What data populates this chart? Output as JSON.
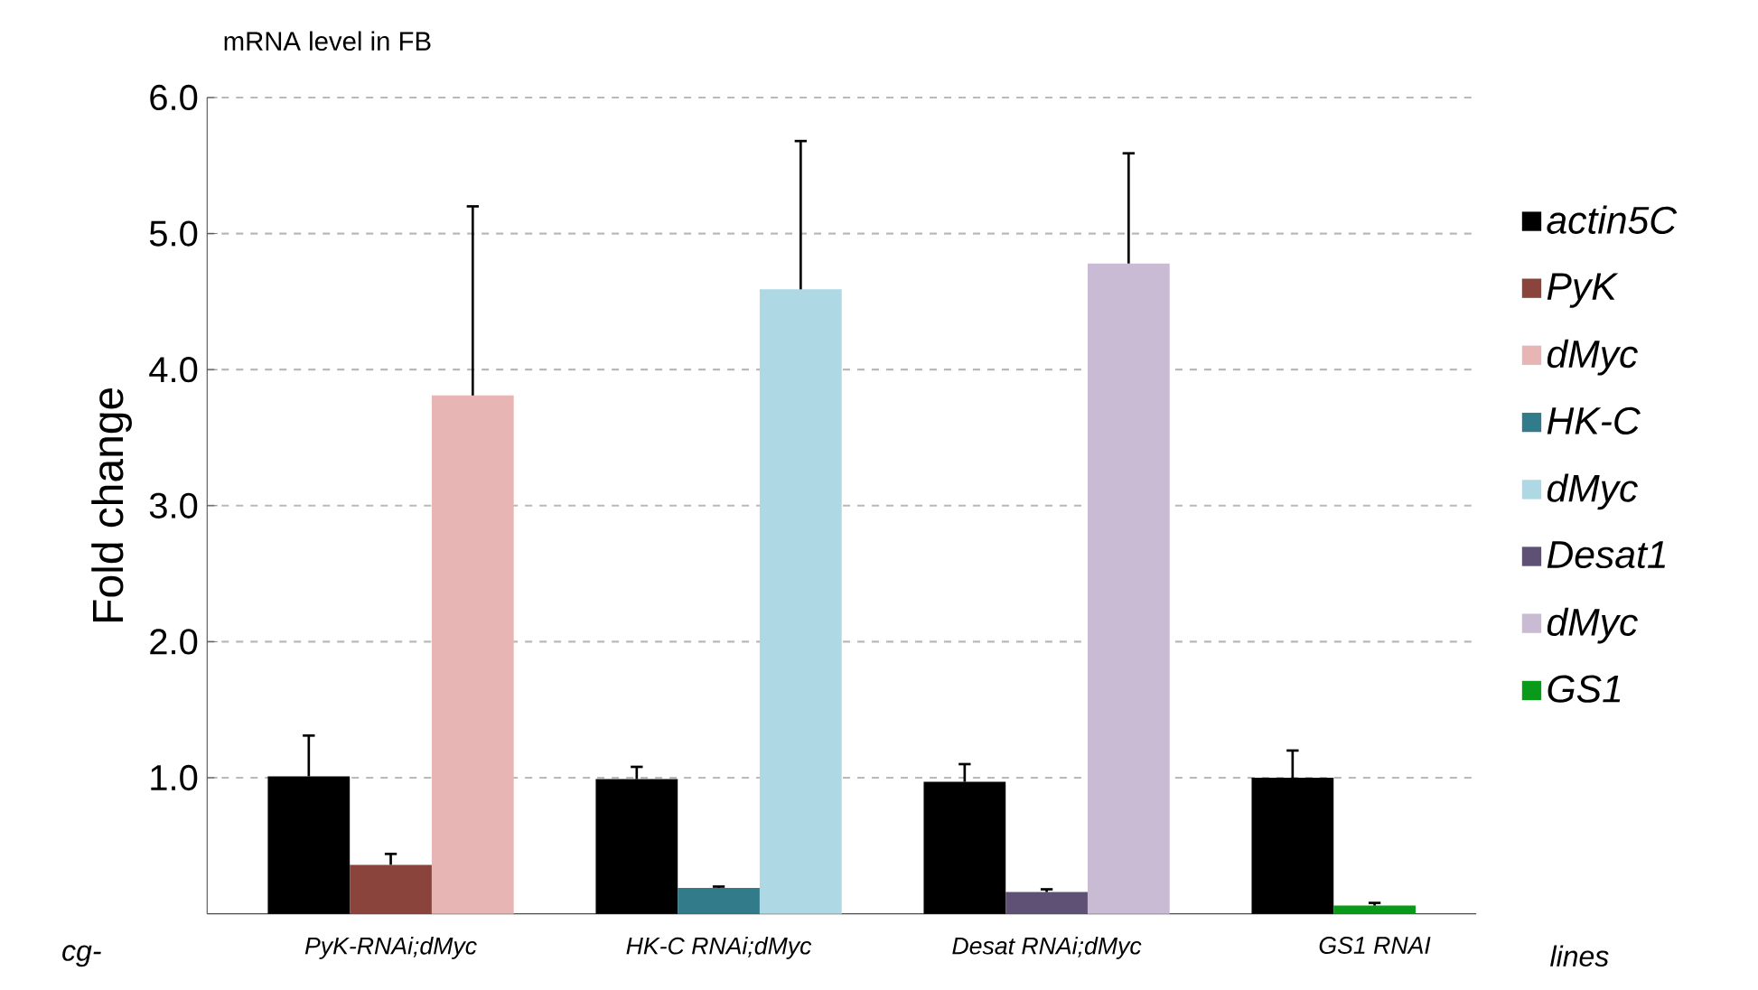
{
  "chart_data": {
    "type": "bar",
    "title": "mRNA level in FB",
    "ylabel": "Fold change",
    "categories": [
      "PyK-RNAi;dMyc",
      "HK-C RNAi;dMyc",
      "Desat RNAi;dMyc",
      "GS1 RNAI"
    ],
    "series": [
      {
        "name": "actin5C",
        "color": "#000000",
        "values": [
          1.01,
          0.99,
          0.97,
          1.0
        ],
        "errors": [
          [
            1.01,
            1.31
          ],
          [
            0.99,
            1.08
          ],
          [
            0.97,
            1.1
          ],
          [
            1.0,
            1.2
          ]
        ]
      },
      {
        "name": "PyK",
        "color": "#8b443c",
        "values": [
          0.36,
          null,
          null,
          null
        ],
        "errors": [
          [
            0.36,
            0.44
          ],
          null,
          null,
          null
        ]
      },
      {
        "name": "dMyc",
        "color": "#e6b5b4",
        "values": [
          3.81,
          null,
          null,
          null
        ],
        "errors": [
          [
            3.81,
            5.2
          ],
          null,
          null,
          null
        ]
      },
      {
        "name": "HK-C",
        "color": "#317b8a",
        "values": [
          null,
          0.19,
          null,
          null
        ],
        "errors": [
          null,
          [
            0.19,
            0.2
          ],
          null,
          null
        ]
      },
      {
        "name": "dMyc",
        "color": "#aed8e4",
        "values": [
          null,
          4.59,
          null,
          null
        ],
        "errors": [
          null,
          [
            4.59,
            5.68
          ],
          null,
          null
        ]
      },
      {
        "name": "Desat1",
        "color": "#5f5175",
        "values": [
          null,
          null,
          0.16,
          null
        ],
        "errors": [
          null,
          null,
          [
            0.16,
            0.18
          ],
          null
        ]
      },
      {
        "name": "dMyc",
        "color": "#c9bbd4",
        "values": [
          null,
          null,
          4.78,
          null
        ],
        "errors": [
          null,
          null,
          [
            4.78,
            5.59
          ],
          null
        ]
      },
      {
        "name": "GS1",
        "color": "#0a9a1a",
        "values": [
          null,
          null,
          null,
          0.06
        ],
        "errors": [
          null,
          null,
          null,
          [
            0.06,
            0.08
          ]
        ]
      }
    ],
    "ylim": [
      0,
      6
    ],
    "yticks": [
      {
        "value": 1,
        "label": "1.0"
      },
      {
        "value": 2,
        "label": "2.0"
      },
      {
        "value": 3,
        "label": "3.0"
      },
      {
        "value": 4,
        "label": "4.0"
      },
      {
        "value": 5,
        "label": "5.0"
      },
      {
        "value": 6,
        "label": "6.0"
      }
    ],
    "grid": "y",
    "legend": "right",
    "annotations": [
      "cg-",
      "lines"
    ]
  }
}
